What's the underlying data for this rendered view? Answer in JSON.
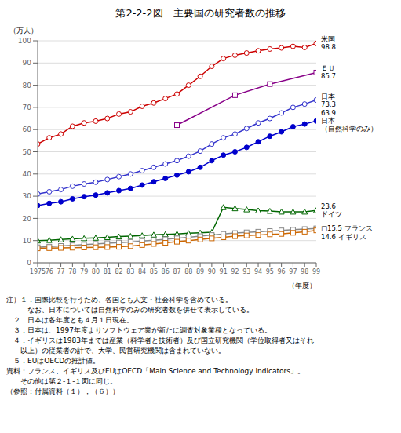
{
  "chart_data": {
    "type": "line",
    "title": "第2-2-2図　主要国の研究者数の推移",
    "x_label": "（年度）",
    "y_label": "（万人）",
    "x": [
      1975,
      1976,
      1977,
      1978,
      1979,
      1980,
      1981,
      1982,
      1983,
      1984,
      1985,
      1986,
      1987,
      1988,
      1989,
      1990,
      1991,
      1992,
      1993,
      1994,
      1995,
      1996,
      1997,
      1998,
      1999
    ],
    "xlim": [
      1975,
      1999
    ],
    "xticks": [
      1975,
      {
        "value": 1976,
        "label": "76"
      },
      {
        "value": 1977,
        "label": "77"
      },
      {
        "value": 1978,
        "label": "78"
      },
      {
        "value": 1979,
        "label": "79"
      },
      {
        "value": 1980,
        "label": "80"
      },
      {
        "value": 1981,
        "label": "81"
      },
      {
        "value": 1982,
        "label": "82"
      },
      {
        "value": 1983,
        "label": "83"
      },
      {
        "value": 1984,
        "label": "84"
      },
      {
        "value": 1985,
        "label": "85"
      },
      {
        "value": 1986,
        "label": "86"
      },
      {
        "value": 1987,
        "label": "87"
      },
      {
        "value": 1988,
        "label": "88"
      },
      {
        "value": 1989,
        "label": "89"
      },
      {
        "value": 1990,
        "label": "90"
      },
      {
        "value": 1991,
        "label": "91"
      },
      {
        "value": 1992,
        "label": "92"
      },
      {
        "value": 1993,
        "label": "93"
      },
      {
        "value": 1994,
        "label": "94"
      },
      {
        "value": 1995,
        "label": "95"
      },
      {
        "value": 1996,
        "label": "96"
      },
      {
        "value": 1997,
        "label": "97"
      },
      {
        "value": 1998,
        "label": "98"
      },
      {
        "value": 1999,
        "label": "99"
      }
    ],
    "ylim": [
      0,
      100
    ],
    "yticks": [
      0,
      10,
      20,
      30,
      40,
      50,
      60,
      70,
      80,
      90,
      100
    ],
    "grid": true,
    "series": [
      {
        "color": "#cc0000",
        "marker": "circle",
        "values": [
          53.5,
          56.3,
          58.0,
          61.5,
          63.0,
          63.8,
          65.0,
          67.0,
          68.0,
          70.5,
          72.0,
          74.0,
          76.0,
          80.0,
          84.0,
          88.5,
          92.0,
          93.5,
          94.5,
          95.5,
          96.3,
          96.8,
          97.5,
          97.0,
          98.8
        ]
      },
      {
        "color": "#880088",
        "marker": "square",
        "x": [
          1987,
          1992,
          1995,
          1999
        ],
        "values": [
          62.0,
          75.5,
          80.5,
          85.7
        ]
      },
      {
        "color": "#3333cc",
        "marker": "circle",
        "values": [
          31.0,
          32.0,
          33.0,
          34.5,
          35.5,
          36.3,
          37.5,
          38.8,
          40.0,
          41.5,
          43.0,
          44.5,
          46.0,
          48.0,
          50.3,
          53.5,
          56.3,
          58.0,
          60.5,
          63.0,
          65.0,
          67.5,
          70.0,
          71.5,
          73.3
        ]
      },
      {
        "color": "#0000cc",
        "marker": "filled_circle",
        "values": [
          25.8,
          26.8,
          27.5,
          28.8,
          29.8,
          30.5,
          31.5,
          32.5,
          33.5,
          35.0,
          36.5,
          38.0,
          39.5,
          41.0,
          43.0,
          46.0,
          48.5,
          50.0,
          52.0,
          54.5,
          57.0,
          59.0,
          61.3,
          62.5,
          63.9
        ]
      },
      {
        "color": "#006600",
        "marker": "triangle",
        "values": [
          10.0,
          10.2,
          10.5,
          10.8,
          11.0,
          11.2,
          11.5,
          11.8,
          12.0,
          12.3,
          12.6,
          12.8,
          13.0,
          13.3,
          13.5,
          13.8,
          25.0,
          24.5,
          24.0,
          23.5,
          23.3,
          23.0,
          23.0,
          23.0,
          23.6
        ]
      },
      {
        "color": "#888888",
        "marker": "square",
        "values": [
          7.0,
          7.3,
          7.6,
          7.9,
          8.2,
          8.5,
          8.8,
          9.1,
          9.4,
          9.8,
          10.2,
          10.6,
          11.0,
          11.5,
          12.0,
          12.5,
          13.0,
          13.4,
          13.7,
          14.0,
          14.3,
          14.6,
          14.9,
          15.2,
          15.5
        ]
      },
      {
        "color": "#cc6600",
        "marker": "square",
        "values": [
          6.5,
          6.6,
          6.7,
          6.8,
          6.9,
          7.0,
          7.1,
          7.2,
          7.5,
          8.0,
          8.5,
          9.0,
          9.5,
          10.0,
          10.5,
          11.0,
          11.5,
          12.0,
          12.3,
          12.5,
          12.8,
          13.0,
          13.5,
          14.0,
          14.6
        ]
      }
    ],
    "annotations": [
      {
        "text": [
          "米国",
          "98.8"
        ],
        "x": 1999,
        "y": 98.8
      },
      {
        "text": [
          "ＥＵ",
          "85.7"
        ],
        "x": 1999,
        "y": 85.7
      },
      {
        "text": [
          "日本",
          "73.3"
        ],
        "x": 1999,
        "y": 73.3
      },
      {
        "text": [
          "63.9",
          "日本",
          "（自然科学のみ）"
        ],
        "x": 1999,
        "y": 63.9
      },
      {
        "text": [
          "23.6",
          "ドイツ"
        ],
        "x": 1999,
        "y": 23.6
      },
      {
        "text": [
          "□15.5 フランス"
        ],
        "x": 1999,
        "y": 15.5
      },
      {
        "text": [
          "14.6 イギリス"
        ],
        "x": 1999,
        "y": 14.6
      }
    ],
    "notes": [
      "注）１．国際比較を行うため、各国とも人文・社会科学を含めている。",
      "　　　なお、日本については自然科学のみの研究者数を併せて表示している。",
      "　２．日本は各年度とも４月１日現在。",
      "　３．日本は、1997年度よりソフトウェア業が新たに調査対象業種となっている。",
      "　４．イギリスは1983年までは産業（科学者と技術者）及び国立研究機関（学位取得者又はそれ",
      "　　以上）の従業者の計で、大学、民営研究機関は含まれていない。",
      "　５．EUはOECDの推計値。",
      "資料：フランス、イギリス及びEUはOECD「Main Science and Technology Indicators」。",
      "　　その他は第２-１-１図に同じ。",
      "（参照：付属資料（１），（６））"
    ]
  }
}
